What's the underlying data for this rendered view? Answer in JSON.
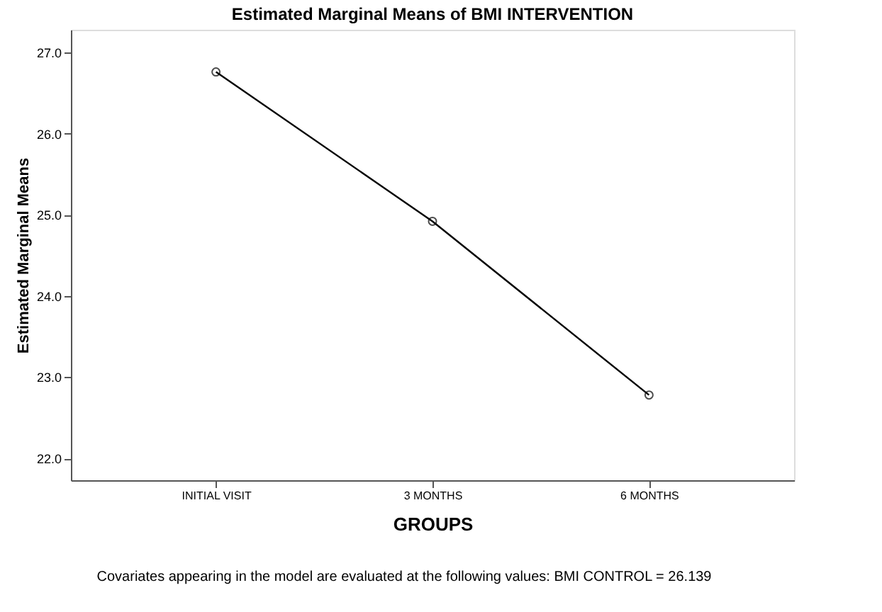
{
  "chart_data": {
    "type": "line",
    "title": "Estimated Marginal Means of BMI INTERVENTION",
    "xlabel": "GROUPS",
    "ylabel": "Estimated Marginal Means",
    "categories": [
      "INITIAL VISIT",
      "3 MONTHS",
      "6 MONTHS"
    ],
    "series": [
      {
        "color": "#000000",
        "values": [
          26.76,
          24.92,
          22.78
        ]
      }
    ],
    "ylim": [
      21.73,
      27.28
    ],
    "yticks": [
      {
        "value": 22,
        "label": "22.0"
      },
      {
        "value": 23,
        "label": "23.0"
      },
      {
        "value": 24,
        "label": "24.0"
      },
      {
        "value": 25,
        "label": "25.0"
      },
      {
        "value": 26,
        "label": "26.0"
      },
      {
        "value": 27,
        "label": "27.0"
      }
    ],
    "grid": false,
    "legend": false,
    "marker": "circle",
    "line_style": "solid",
    "annotations": [
      "Covariates appearing in the model are evaluated at the following values: BMI CONTROL = 26.139"
    ]
  }
}
